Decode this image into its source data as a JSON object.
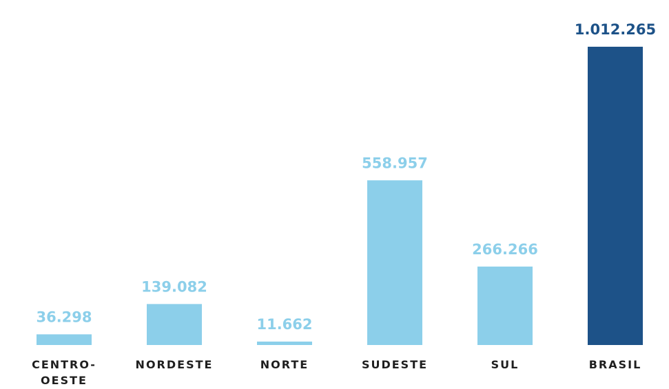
{
  "chart_data": {
    "type": "bar",
    "categories": [
      "CENTRO-\nOESTE",
      "NORDESTE",
      "NORTE",
      "SUDESTE",
      "SUL",
      "BRASIL"
    ],
    "values": [
      36298,
      139082,
      11662,
      558957,
      266266,
      1012265
    ],
    "value_labels": [
      "36.298",
      "139.082",
      "11.662",
      "558.957",
      "266.266",
      "1.012.265"
    ],
    "colors": [
      "#8ccfea",
      "#8ccfea",
      "#8ccfea",
      "#8ccfea",
      "#8ccfea",
      "#1d5288"
    ]
  }
}
